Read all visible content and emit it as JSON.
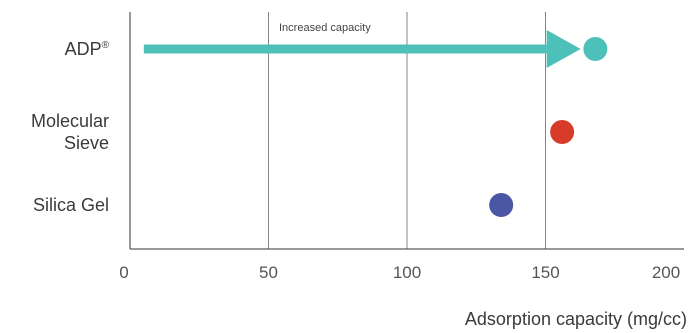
{
  "chart_data": {
    "type": "scatter",
    "orientation": "horizontal",
    "title": "",
    "xlabel": "Adsorption capacity (mg/cc)",
    "ylabel": "",
    "xlim": [
      0,
      200
    ],
    "xticks": [
      0,
      50,
      100,
      150,
      200
    ],
    "xtick_labels": [
      "0",
      "50",
      "100",
      "150",
      "200"
    ],
    "grid": "vertical",
    "categories": [
      {
        "name": "ADP",
        "superscript": "®",
        "lines": [
          "ADP"
        ]
      },
      {
        "name": "Molecular Sieve",
        "lines": [
          "Molecular",
          "Sieve"
        ]
      },
      {
        "name": "Silica Gel",
        "lines": [
          "Silica Gel"
        ]
      }
    ],
    "points": [
      {
        "category": "ADP",
        "value": 168,
        "color": "#4dc1b9"
      },
      {
        "category": "Molecular Sieve",
        "value": 156,
        "color": "#d93b2b"
      },
      {
        "category": "Silica Gel",
        "value": 134,
        "color": "#4b56a5"
      }
    ],
    "annotation": {
      "text": "Increased capacity",
      "arrow_from": 5,
      "arrow_to": 158,
      "category": "ADP",
      "color": "#4dc1b9"
    }
  }
}
